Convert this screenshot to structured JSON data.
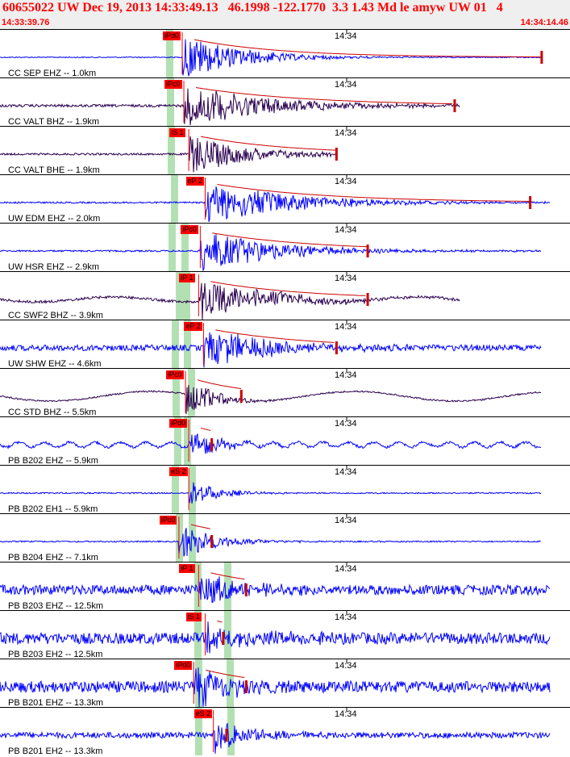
{
  "header": {
    "title": "60655022 UW Dec 19, 2013 14:33:49.13   46.1998 -122.1770  3.3 1.43 Md le amyw UW 01   4",
    "start_time": "14:33:39.76",
    "end_time": "14:34:14.46",
    "minute_label": "14:34"
  },
  "colors": {
    "header_bg": "#efefef",
    "header_text": "#ff0000",
    "trace_vertical": "#0000ff",
    "trace_horizontal": "#2a004f",
    "pick_bg": "#ff0000",
    "phase_band": "#b3e0b3",
    "coda": "#cc0000"
  },
  "chart_data": {
    "type": "line",
    "title": "60655022 UW Dec 19, 2013 14:33:49.13   46.1998 -122.1770  3.3 1.43 Md le amyw UW 01   4",
    "x_range": [
      "14:33:39.76",
      "14:34:14.46"
    ],
    "x_tick": "14:34",
    "traces": [
      {
        "label": "CC SEP EHZ -- 1.0km",
        "pick": "iPd0",
        "color": "blue",
        "onset_s": 11.1,
        "amp": 0.95,
        "noise": 0.03,
        "decay_s": 3.5,
        "end_s": 33.0,
        "coda_end_s": 33.0,
        "wave": "none"
      },
      {
        "label": "CC VALT BHZ -- 1.9km",
        "pick": "iPc0",
        "color": "dark",
        "onset_s": 11.2,
        "amp": 0.9,
        "noise": 0.08,
        "decay_s": 5.0,
        "end_s": 28.0,
        "coda_end_s": 27.7,
        "wave": "none"
      },
      {
        "label": "CC VALT BHE -- 1.9km",
        "pick": "iS 1",
        "color": "dark",
        "onset_s": 11.5,
        "amp": 0.85,
        "noise": 0.06,
        "decay_s": 3.5,
        "end_s": 20.5,
        "coda_end_s": 20.5,
        "wave": "none"
      },
      {
        "label": "UW EDM EHZ -- 2.0km",
        "pick": "eP 2",
        "color": "blue",
        "onset_s": 12.5,
        "amp": 0.95,
        "noise": 0.05,
        "decay_s": 5.0,
        "end_s": 33.5,
        "coda_end_s": 32.3,
        "wave": "none"
      },
      {
        "label": "UW HSR EHZ -- 2.9km",
        "pick": "iPc0",
        "color": "blue",
        "onset_s": 12.2,
        "amp": 0.9,
        "noise": 0.05,
        "decay_s": 4.5,
        "end_s": 33.0,
        "coda_end_s": 22.4,
        "wave": "none"
      },
      {
        "label": "CC SWF2 BHZ -- 3.9km",
        "pick": "iP 1",
        "color": "dark",
        "onset_s": 12.1,
        "amp": 0.85,
        "noise": 0.08,
        "decay_s": 4.0,
        "end_s": 28.0,
        "coda_end_s": 22.4,
        "wave": "slow"
      },
      {
        "label": "UW SHW EHZ -- 4.6km",
        "pick": "eP 2",
        "color": "blue",
        "onset_s": 12.4,
        "amp": 0.85,
        "noise": 0.18,
        "decay_s": 4.0,
        "end_s": 33.0,
        "coda_end_s": 20.5,
        "wave": "none"
      },
      {
        "label": "CC STD BHZ -- 5.5km",
        "pick": "iPc0",
        "color": "dark",
        "onset_s": 11.3,
        "amp": 0.95,
        "noise": 0.05,
        "decay_s": 1.5,
        "end_s": 33.0,
        "coda_end_s": 14.7,
        "wave": "swell"
      },
      {
        "label": "PB B202 EHZ -- 5.9km",
        "pick": "iPd0",
        "color": "blue",
        "onset_s": 11.5,
        "amp": 0.55,
        "noise": 0.08,
        "decay_s": 1.8,
        "end_s": 33.0,
        "coda_end_s": 12.9,
        "wave": "ripple"
      },
      {
        "label": "PB B202 EH1 -- 5.9km",
        "pick": "eS 2",
        "color": "blue",
        "onset_s": 11.5,
        "amp": 0.6,
        "noise": 0.04,
        "decay_s": 1.6,
        "end_s": 33.0,
        "coda_end_s": 11.5,
        "wave": "none"
      },
      {
        "label": "PB B204 EHZ -- 7.1km",
        "pick": "iPc0",
        "color": "blue",
        "onset_s": 10.9,
        "amp": 0.75,
        "noise": 0.04,
        "decay_s": 2.2,
        "end_s": 33.0,
        "coda_end_s": 12.9,
        "wave": "none"
      },
      {
        "label": "PB B203 EHZ -- 12.5km",
        "pick": "iP 1",
        "color": "blue",
        "onset_s": 12.1,
        "amp": 0.7,
        "noise": 0.3,
        "decay_s": 2.5,
        "end_s": 33.5,
        "coda_end_s": 15.0,
        "wave": "none"
      },
      {
        "label": "PB B203 EH2 -- 12.5km",
        "pick": "iS 1",
        "color": "blue",
        "onset_s": 12.5,
        "amp": 0.55,
        "noise": 0.35,
        "decay_s": 3.0,
        "end_s": 33.5,
        "coda_end_s": 13.6,
        "wave": "none"
      },
      {
        "label": "PB B201 EHZ -- 13.3km",
        "pick": "iPd0",
        "color": "blue",
        "onset_s": 11.8,
        "amp": 0.95,
        "noise": 0.35,
        "decay_s": 2.0,
        "end_s": 33.5,
        "coda_end_s": 15.0,
        "wave": "none"
      },
      {
        "label": "PB B201 EH2 -- 13.3km",
        "pick": "eS 2",
        "color": "blue",
        "onset_s": 13.0,
        "amp": 0.8,
        "noise": 0.18,
        "decay_s": 2.0,
        "end_s": 33.5,
        "coda_end_s": 13.8,
        "wave": "none"
      }
    ]
  }
}
